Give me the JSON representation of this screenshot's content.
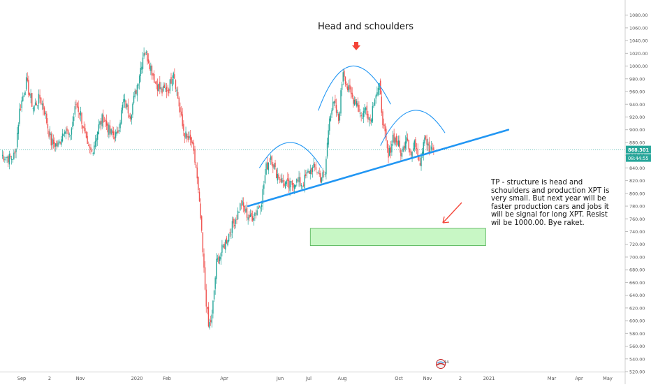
{
  "chart_data": {
    "type": "candlestick",
    "title": "Head and schoulders",
    "annotation": "TP - structure is head and schoulders and production XPT is very small. But next year will be faster production cars and jobs it will be signal for long XPT. Resist wil be 1000.00. Bye raket.",
    "ylim": [
      520,
      1095
    ],
    "x_tick_labels": [
      "Sep",
      "2",
      "Nov",
      "2020",
      "Feb",
      "Apr",
      "Jun",
      "Jul",
      "Aug",
      "Oct",
      "Nov",
      "2",
      "2021",
      "Mar",
      "Apr",
      "May"
    ],
    "y_tick_labels": [
      520,
      540,
      560,
      580,
      600,
      620,
      640,
      660,
      680,
      700,
      720,
      740,
      760,
      780,
      800,
      820,
      840,
      860,
      880,
      900,
      920,
      940,
      960,
      980,
      1000,
      1020,
      1040,
      1060,
      1080
    ],
    "last_price": "868.301",
    "countdown": "08:44:55",
    "price_path": [
      {
        "bar": 0,
        "value": 860
      },
      {
        "bar": 8,
        "value": 855
      },
      {
        "bar": 12,
        "value": 860
      },
      {
        "bar": 16,
        "value": 930
      },
      {
        "bar": 22,
        "value": 975
      },
      {
        "bar": 28,
        "value": 935
      },
      {
        "bar": 34,
        "value": 950
      },
      {
        "bar": 38,
        "value": 930
      },
      {
        "bar": 44,
        "value": 880
      },
      {
        "bar": 50,
        "value": 875
      },
      {
        "bar": 56,
        "value": 905
      },
      {
        "bar": 60,
        "value": 885
      },
      {
        "bar": 66,
        "value": 940
      },
      {
        "bar": 70,
        "value": 925
      },
      {
        "bar": 76,
        "value": 870
      },
      {
        "bar": 80,
        "value": 865
      },
      {
        "bar": 86,
        "value": 905
      },
      {
        "bar": 90,
        "value": 920
      },
      {
        "bar": 96,
        "value": 895
      },
      {
        "bar": 102,
        "value": 890
      },
      {
        "bar": 108,
        "value": 945
      },
      {
        "bar": 114,
        "value": 925
      },
      {
        "bar": 120,
        "value": 970
      },
      {
        "bar": 126,
        "value": 1025
      },
      {
        "bar": 130,
        "value": 1010
      },
      {
        "bar": 136,
        "value": 975
      },
      {
        "bar": 142,
        "value": 960
      },
      {
        "bar": 148,
        "value": 965
      },
      {
        "bar": 152,
        "value": 995
      },
      {
        "bar": 156,
        "value": 950
      },
      {
        "bar": 160,
        "value": 905
      },
      {
        "bar": 164,
        "value": 885
      },
      {
        "bar": 168,
        "value": 880
      },
      {
        "bar": 172,
        "value": 840
      },
      {
        "bar": 176,
        "value": 760
      },
      {
        "bar": 180,
        "value": 650
      },
      {
        "bar": 183,
        "value": 590
      },
      {
        "bar": 186,
        "value": 605
      },
      {
        "bar": 190,
        "value": 690
      },
      {
        "bar": 196,
        "value": 715
      },
      {
        "bar": 202,
        "value": 740
      },
      {
        "bar": 208,
        "value": 765
      },
      {
        "bar": 212,
        "value": 785
      },
      {
        "bar": 216,
        "value": 770
      },
      {
        "bar": 220,
        "value": 760
      },
      {
        "bar": 226,
        "value": 775
      },
      {
        "bar": 230,
        "value": 790
      },
      {
        "bar": 234,
        "value": 840
      },
      {
        "bar": 238,
        "value": 860
      },
      {
        "bar": 242,
        "value": 835
      },
      {
        "bar": 248,
        "value": 820
      },
      {
        "bar": 254,
        "value": 810
      },
      {
        "bar": 260,
        "value": 820
      },
      {
        "bar": 266,
        "value": 815
      },
      {
        "bar": 272,
        "value": 835
      },
      {
        "bar": 278,
        "value": 840
      },
      {
        "bar": 282,
        "value": 825
      },
      {
        "bar": 286,
        "value": 830
      },
      {
        "bar": 290,
        "value": 925
      },
      {
        "bar": 294,
        "value": 940
      },
      {
        "bar": 298,
        "value": 915
      },
      {
        "bar": 302,
        "value": 995
      },
      {
        "bar": 306,
        "value": 965
      },
      {
        "bar": 310,
        "value": 950
      },
      {
        "bar": 314,
        "value": 945
      },
      {
        "bar": 318,
        "value": 920
      },
      {
        "bar": 322,
        "value": 935
      },
      {
        "bar": 326,
        "value": 915
      },
      {
        "bar": 330,
        "value": 955
      },
      {
        "bar": 334,
        "value": 965
      },
      {
        "bar": 338,
        "value": 900
      },
      {
        "bar": 342,
        "value": 855
      },
      {
        "bar": 346,
        "value": 890
      },
      {
        "bar": 350,
        "value": 880
      },
      {
        "bar": 354,
        "value": 860
      },
      {
        "bar": 358,
        "value": 895
      },
      {
        "bar": 362,
        "value": 860
      },
      {
        "bar": 366,
        "value": 880
      },
      {
        "bar": 370,
        "value": 850
      },
      {
        "bar": 374,
        "value": 895
      },
      {
        "bar": 378,
        "value": 865
      },
      {
        "bar": 382,
        "value": 868
      }
    ],
    "neckline": {
      "from": {
        "bar": 218,
        "value": 780
      },
      "to": {
        "bar": 448,
        "value": 900
      }
    },
    "shoulder_arcs": [
      {
        "name": "left-shoulder-arc",
        "from": {
          "bar": 228,
          "value": 840
        },
        "peak": {
          "bar": 255,
          "value": 880
        },
        "to": {
          "bar": 283,
          "value": 840
        }
      },
      {
        "name": "head-arc",
        "from": {
          "bar": 280,
          "value": 930
        },
        "peak": {
          "bar": 308,
          "value": 1000
        },
        "to": {
          "bar": 344,
          "value": 940
        }
      },
      {
        "name": "right-shoulder-arc",
        "from": {
          "bar": 335,
          "value": 875
        },
        "peak": {
          "bar": 363,
          "value": 930
        },
        "to": {
          "bar": 392,
          "value": 895
        }
      }
    ],
    "target_zone": {
      "from_bar": 273,
      "to_bar": 428,
      "top": 745,
      "bottom": 718
    },
    "colors": {
      "up": "#26a69a",
      "down": "#ef5350",
      "neckline": "#2196f3",
      "zone_fill": "#c8f7c5",
      "zone_border": "#4caf50",
      "arrow": "#f44336",
      "axis_text": "#555555"
    }
  }
}
